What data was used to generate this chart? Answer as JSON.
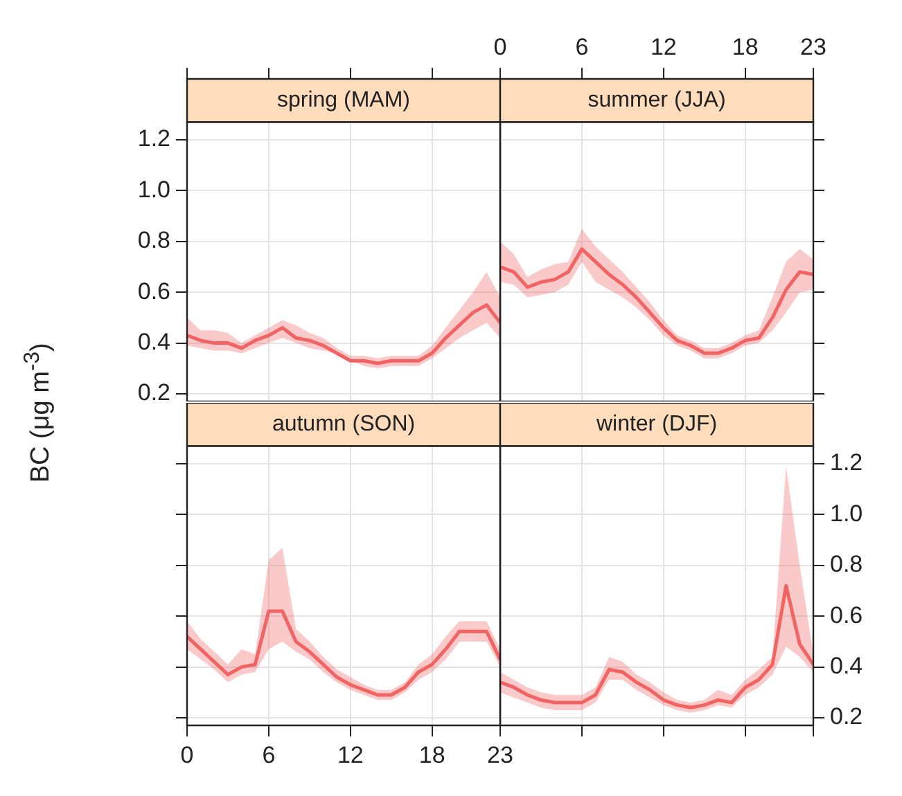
{
  "chart_data": [
    {
      "type": "line",
      "title": "spring (MAM)",
      "ylabel": "BC (μg m$^{-3}$)",
      "x": [
        0,
        1,
        2,
        3,
        4,
        5,
        6,
        7,
        8,
        9,
        10,
        11,
        12,
        13,
        14,
        15,
        16,
        17,
        18,
        19,
        20,
        21,
        22,
        23
      ],
      "series": [
        {
          "color": "#f06464",
          "values": [
            0.43,
            0.41,
            0.4,
            0.4,
            0.38,
            0.41,
            0.43,
            0.46,
            0.42,
            0.41,
            0.39,
            0.36,
            0.33,
            0.33,
            0.32,
            0.33,
            0.33,
            0.33,
            0.36,
            0.42,
            0.47,
            0.52,
            0.55,
            0.48
          ],
          "lower": [
            0.39,
            0.38,
            0.37,
            0.37,
            0.36,
            0.38,
            0.4,
            0.42,
            0.4,
            0.38,
            0.37,
            0.36,
            0.33,
            0.31,
            0.3,
            0.31,
            0.31,
            0.31,
            0.34,
            0.38,
            0.42,
            0.45,
            0.48,
            0.42
          ],
          "upper": [
            0.5,
            0.45,
            0.45,
            0.44,
            0.4,
            0.43,
            0.46,
            0.49,
            0.47,
            0.44,
            0.42,
            0.38,
            0.35,
            0.35,
            0.34,
            0.35,
            0.35,
            0.35,
            0.39,
            0.46,
            0.53,
            0.6,
            0.68,
            0.58
          ]
        }
      ],
      "xlim": [
        0,
        23
      ],
      "xticks": [
        0,
        6,
        12,
        18,
        23
      ],
      "ylim": [
        0.17,
        1.27
      ],
      "yticks": [
        0.2,
        0.4,
        0.6,
        0.8,
        {
          "value": 1,
          "label": "1.0"
        },
        1.2
      ],
      "grid": true,
      "tick_labels": "y"
    },
    {
      "type": "line",
      "title": "summer (JJA)",
      "x": [
        0,
        1,
        2,
        3,
        4,
        5,
        6,
        7,
        8,
        9,
        10,
        11,
        12,
        13,
        14,
        15,
        16,
        17,
        18,
        19,
        20,
        21,
        22,
        23
      ],
      "series": [
        {
          "color": "#f06464",
          "values": [
            0.7,
            0.68,
            0.62,
            0.64,
            0.65,
            0.68,
            0.77,
            0.72,
            0.67,
            0.63,
            0.58,
            0.52,
            0.46,
            0.41,
            0.39,
            0.36,
            0.36,
            0.38,
            0.41,
            0.42,
            0.5,
            0.61,
            0.68,
            0.67
          ],
          "lower": [
            0.64,
            0.63,
            0.58,
            0.59,
            0.6,
            0.63,
            0.72,
            0.64,
            0.61,
            0.58,
            0.54,
            0.49,
            0.43,
            0.39,
            0.37,
            0.34,
            0.34,
            0.36,
            0.39,
            0.4,
            0.45,
            0.52,
            0.6,
            0.61
          ],
          "upper": [
            0.8,
            0.75,
            0.66,
            0.69,
            0.71,
            0.72,
            0.85,
            0.78,
            0.73,
            0.68,
            0.62,
            0.56,
            0.49,
            0.43,
            0.41,
            0.38,
            0.38,
            0.4,
            0.43,
            0.45,
            0.58,
            0.72,
            0.77,
            0.73
          ]
        }
      ],
      "xlim": [
        0,
        23
      ],
      "xticks": [
        0,
        6,
        12,
        18,
        23
      ],
      "ylim": [
        0.17,
        1.27
      ],
      "yticks": [
        0.2,
        0.4,
        0.6,
        0.8,
        1,
        1.2
      ],
      "grid": true,
      "tick_labels": "x"
    },
    {
      "type": "line",
      "title": "autumn (SON)",
      "x": [
        0,
        1,
        2,
        3,
        4,
        5,
        6,
        7,
        8,
        9,
        10,
        11,
        12,
        13,
        14,
        15,
        16,
        17,
        18,
        19,
        20,
        21,
        22,
        23
      ],
      "series": [
        {
          "color": "#f06464",
          "values": [
            0.52,
            0.47,
            0.42,
            0.37,
            0.4,
            0.41,
            0.62,
            0.62,
            0.5,
            0.46,
            0.41,
            0.36,
            0.33,
            0.31,
            0.29,
            0.29,
            0.32,
            0.38,
            0.41,
            0.47,
            0.54,
            0.54,
            0.54,
            0.43
          ],
          "lower": [
            0.47,
            0.43,
            0.39,
            0.34,
            0.37,
            0.38,
            0.47,
            0.5,
            0.46,
            0.43,
            0.38,
            0.34,
            0.31,
            0.29,
            0.27,
            0.27,
            0.3,
            0.35,
            0.38,
            0.43,
            0.5,
            0.5,
            0.5,
            0.4
          ],
          "upper": [
            0.58,
            0.51,
            0.46,
            0.41,
            0.47,
            0.45,
            0.82,
            0.87,
            0.55,
            0.5,
            0.44,
            0.39,
            0.36,
            0.33,
            0.31,
            0.31,
            0.34,
            0.41,
            0.45,
            0.52,
            0.58,
            0.58,
            0.58,
            0.47
          ]
        }
      ],
      "xlim": [
        0,
        23
      ],
      "xticks": [
        0,
        6,
        12,
        18,
        23
      ],
      "ylim": [
        0.17,
        1.27
      ],
      "yticks": [
        0.2,
        0.4,
        0.6,
        0.8,
        1,
        1.2
      ],
      "grid": true,
      "tick_labels": "x"
    },
    {
      "type": "line",
      "title": "winter (DJF)",
      "x": [
        0,
        1,
        2,
        3,
        4,
        5,
        6,
        7,
        8,
        9,
        10,
        11,
        12,
        13,
        14,
        15,
        16,
        17,
        18,
        19,
        20,
        21,
        22,
        23
      ],
      "series": [
        {
          "color": "#f06464",
          "values": [
            0.34,
            0.32,
            0.29,
            0.27,
            0.26,
            0.26,
            0.26,
            0.29,
            0.39,
            0.38,
            0.34,
            0.31,
            0.27,
            0.25,
            0.24,
            0.25,
            0.27,
            0.26,
            0.32,
            0.35,
            0.41,
            0.72,
            0.49,
            0.41
          ],
          "lower": [
            0.3,
            0.28,
            0.26,
            0.24,
            0.23,
            0.23,
            0.23,
            0.26,
            0.35,
            0.35,
            0.31,
            0.28,
            0.25,
            0.23,
            0.22,
            0.23,
            0.25,
            0.24,
            0.29,
            0.32,
            0.37,
            0.48,
            0.44,
            0.38
          ],
          "upper": [
            0.38,
            0.35,
            0.32,
            0.3,
            0.29,
            0.29,
            0.29,
            0.32,
            0.44,
            0.42,
            0.37,
            0.34,
            0.3,
            0.27,
            0.26,
            0.27,
            0.31,
            0.29,
            0.35,
            0.39,
            0.44,
            1.19,
            0.8,
            0.45
          ]
        }
      ],
      "xlim": [
        0,
        23
      ],
      "xticks": [
        0,
        6,
        12,
        18,
        23
      ],
      "ylim": [
        0.17,
        1.27
      ],
      "yticks": [
        0.2,
        0.4,
        0.6,
        0.8,
        {
          "value": 1,
          "label": "1.0"
        },
        1.2
      ],
      "grid": true,
      "tick_labels": "y"
    }
  ]
}
